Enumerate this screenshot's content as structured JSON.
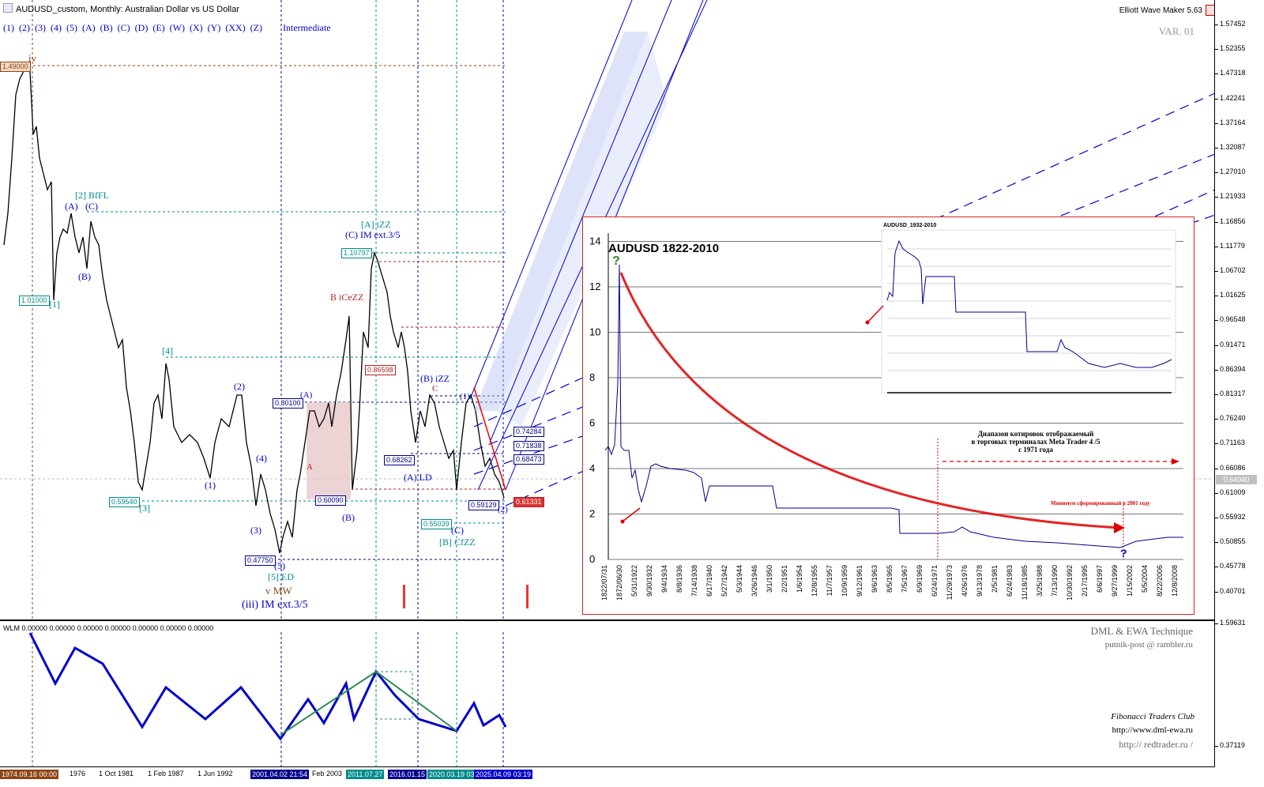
{
  "window": {
    "title": "AUDUSD_custom, Monthly:  Australian Dollar vs US Dollar",
    "tool": "Elliott Wave Maker 5.63",
    "version": "VAR. 01"
  },
  "degree_buttons": [
    "(1)",
    "(2)",
    "(3)",
    "(4)",
    "(5)",
    "(A)",
    "(B)",
    "(C)",
    "(D)",
    "(E)",
    "(W)",
    "(X)",
    "(Y)",
    "(XX)",
    "(Z)"
  ],
  "degree_active": "Intermediate",
  "price_scale": [
    "1.57452",
    "1.52355",
    "1.47318",
    "1.42241",
    "1.37164",
    "1.32087",
    "1.27010",
    "1.21933",
    "1.16856",
    "1.11779",
    "1.06702",
    "1.01625",
    "0.96548",
    "0.91471",
    "0.86394",
    "0.81317",
    "0.76240",
    "0.71163",
    "0.66086",
    "0.61009",
    "0.55932",
    "0.50855",
    "0.45778",
    "0.40701"
  ],
  "current_price": "0.64040",
  "indicator_scale": [
    "1.59631",
    "0.37119"
  ],
  "indicator_label": "WLM 0.00000 0.00000 0.00000 0.00000 0.00000 0.00000 0.00000",
  "time_axis": {
    "labels": [
      "1976",
      "1 Oct 1981",
      "1 Feb 1987",
      "1 Jun 1992",
      "Feb 2003"
    ],
    "highlighted": [
      {
        "text": "1974.09.16 00:00",
        "color": "#8b4513"
      },
      {
        "text": "2001.04.02 21:54",
        "color": "#00008b"
      },
      {
        "text": "2011.07.27",
        "color": "#008b8b"
      },
      {
        "text": "2016.01.15",
        "color": "#00008b"
      },
      {
        "text": "2020.03.19 03",
        "color": "#008b8b"
      },
      {
        "text": "2025.04.09 03:19",
        "color": "#0000cd"
      }
    ]
  },
  "price_boxes": [
    {
      "text": "1.49000",
      "color": "#8b4513"
    },
    {
      "text": "1.01000",
      "color": "#008b8b"
    },
    {
      "text": "0.59540",
      "color": "#008b8b"
    },
    {
      "text": "0.47750",
      "color": "#00008b"
    },
    {
      "text": "0.80100",
      "color": "#00008b"
    },
    {
      "text": "0.60090",
      "color": "#00008b"
    },
    {
      "text": "1.10797",
      "color": "#008b8b"
    },
    {
      "text": "0.86598",
      "color": "#b22222"
    },
    {
      "text": "0.68262",
      "color": "#00008b"
    },
    {
      "text": "0.55039",
      "color": "#008b8b"
    },
    {
      "text": "0.59129",
      "color": "#00008b"
    },
    {
      "text": "0.74284",
      "color": "#00008b"
    },
    {
      "text": "0.71838",
      "color": "#00008b"
    },
    {
      "text": "0.68473",
      "color": "#00008b"
    },
    {
      "text": "0.61331",
      "color": "#b22222"
    }
  ],
  "wave_labels": [
    {
      "text": "iv",
      "color": "#8b4513"
    },
    {
      "text": "[2] BfFL",
      "color": "#008b8b"
    },
    {
      "text": "(A)",
      "color": "#00c"
    },
    {
      "text": "(C)",
      "color": "#00c"
    },
    {
      "text": "(B)",
      "color": "#00c"
    },
    {
      "text": "[1]",
      "color": "#008b8b"
    },
    {
      "text": "[4]",
      "color": "#008b8b"
    },
    {
      "text": "(2)",
      "color": "#00c"
    },
    {
      "text": "(4)",
      "color": "#00c"
    },
    {
      "text": "(1)",
      "color": "#00c"
    },
    {
      "text": "(3)",
      "color": "#00c"
    },
    {
      "text": "[3]",
      "color": "#008b8b"
    },
    {
      "text": "(5)",
      "color": "#00c"
    },
    {
      "text": "[5] ED",
      "color": "#008b8b"
    },
    {
      "text": "v MW",
      "color": "#8b4513"
    },
    {
      "text": "(iii) IM ext.3/5",
      "color": "#00c"
    },
    {
      "text": "[A] iZZ",
      "color": "#008b8b"
    },
    {
      "text": "(C) IM ext.3/5",
      "color": "#00c"
    },
    {
      "text": "B iCeZZ",
      "color": "#b22222"
    },
    {
      "text": "(A)",
      "color": "#00c"
    },
    {
      "text": "(B)",
      "color": "#00c"
    },
    {
      "text": "A",
      "color": "#b22222"
    },
    {
      "text": "C",
      "color": "#b22222"
    },
    {
      "text": "(B) iZZ",
      "color": "#00c"
    },
    {
      "text": "(A) LD",
      "color": "#00c"
    },
    {
      "text": "(C)",
      "color": "#00c"
    },
    {
      "text": "[B] CfZZ",
      "color": "#008b8b"
    },
    {
      "text": "(1)",
      "color": "#00c"
    },
    {
      "text": "(2)",
      "color": "#00c"
    }
  ],
  "inset": {
    "title": "AUDUSD 1822-2010",
    "qmark": "?",
    "y_ticks": [
      "0",
      "2",
      "4",
      "6",
      "8",
      "10",
      "12",
      "14"
    ],
    "x_ticks": [
      "1822/07/31",
      "1872/06/30",
      "5/31/1922",
      "9/30/1932",
      "9/4/1934",
      "8/8/1936",
      "7/14/1938",
      "6/17/1940",
      "5/27/1942",
      "5/3/1944",
      "3/26/1946",
      "3/1/1950",
      "2/2/1951",
      "1/6/1954",
      "12/8/1955",
      "11/7/1957",
      "10/9/1959",
      "9/12/1961",
      "9/6/1963",
      "8/5/1965",
      "7/5/1967",
      "6/9/1969",
      "6/24/1971",
      "11/29/1973",
      "4/26/1976",
      "9/13/1978",
      "2/5/1981",
      "6/24/1983",
      "11/18/1985",
      "3/25/1988",
      "7/13/1990",
      "10/30/1992",
      "2/17/1995",
      "6/6/1997",
      "9/27/1999",
      "1/15/2002",
      "5/5/2004",
      "8/22/2006",
      "12/8/2008"
    ],
    "small_title": "AUDUSD_1932-2010",
    "range_note_1": "Диапазон котировок отображаемый",
    "range_note_2": "в торговых терминалах  Meta Trader 4 /5",
    "range_note_3": "с 1971 года",
    "min_note": "Минимум сформированный в 2001 году"
  },
  "branding": {
    "line1": "DML & EWA Technique",
    "line2": "putnik-post @ rambler.ru",
    "club": "Fibonacci    Traders    Club",
    "url1": "http://www.dml-ewa.ru",
    "url2": "http:// redtrader.ru /"
  }
}
